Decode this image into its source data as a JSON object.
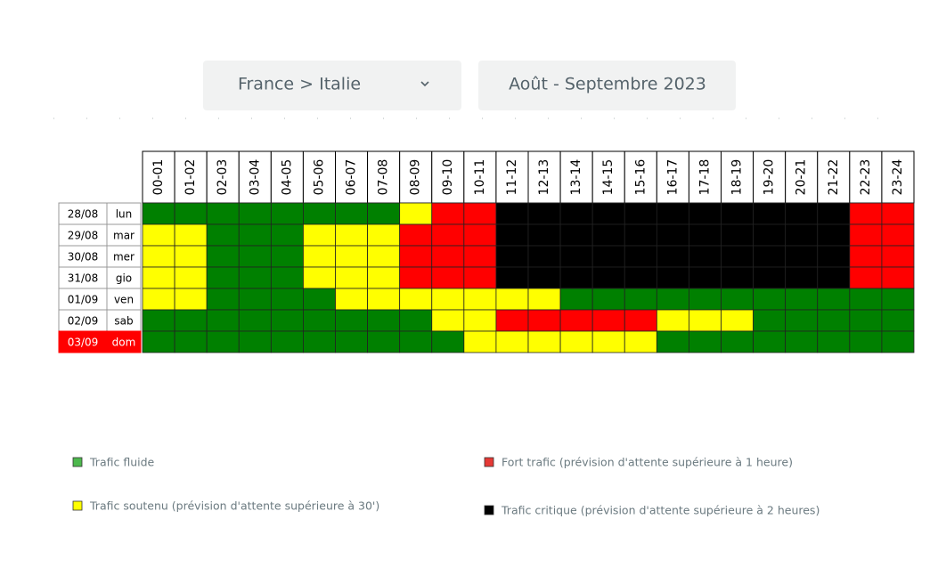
{
  "filters": {
    "route": "France > Italie",
    "period": "Août - Septembre 2023"
  },
  "table": {
    "hours": [
      "00-01",
      "01-02",
      "02-03",
      "03-04",
      "04-05",
      "05-06",
      "06-07",
      "07-08",
      "08-09",
      "09-10",
      "10-11",
      "11-12",
      "12-13",
      "13-14",
      "14-15",
      "15-16",
      "16-17",
      "17-18",
      "18-19",
      "19-20",
      "20-21",
      "21-22",
      "22-23",
      "23-24"
    ],
    "rows": [
      {
        "date": "28/08",
        "day": "lun",
        "cells": [
          "#008000",
          "#008000",
          "#008000",
          "#008000",
          "#008000",
          "#008000",
          "#008000",
          "#008000",
          "#ffff00",
          "#ff0000",
          "#ff0000",
          "#000000",
          "#000000",
          "#000000",
          "#000000",
          "#000000",
          "#000000",
          "#000000",
          "#000000",
          "#000000",
          "#000000",
          "#000000",
          "#ff0000",
          "#ff0000"
        ]
      },
      {
        "date": "29/08",
        "day": "mar",
        "cells": [
          "#ffff00",
          "#ffff00",
          "#008000",
          "#008000",
          "#008000",
          "#ffff00",
          "#ffff00",
          "#ffff00",
          "#ff0000",
          "#ff0000",
          "#ff0000",
          "#000000",
          "#000000",
          "#000000",
          "#000000",
          "#000000",
          "#000000",
          "#000000",
          "#000000",
          "#000000",
          "#000000",
          "#000000",
          "#ff0000",
          "#ff0000"
        ]
      },
      {
        "date": "30/08",
        "day": "mer",
        "cells": [
          "#ffff00",
          "#ffff00",
          "#008000",
          "#008000",
          "#008000",
          "#ffff00",
          "#ffff00",
          "#ffff00",
          "#ff0000",
          "#ff0000",
          "#ff0000",
          "#000000",
          "#000000",
          "#000000",
          "#000000",
          "#000000",
          "#000000",
          "#000000",
          "#000000",
          "#000000",
          "#000000",
          "#000000",
          "#ff0000",
          "#ff0000"
        ]
      },
      {
        "date": "31/08",
        "day": "gio",
        "cells": [
          "#ffff00",
          "#ffff00",
          "#008000",
          "#008000",
          "#008000",
          "#ffff00",
          "#ffff00",
          "#ffff00",
          "#ff0000",
          "#ff0000",
          "#ff0000",
          "#000000",
          "#000000",
          "#000000",
          "#000000",
          "#000000",
          "#000000",
          "#000000",
          "#000000",
          "#000000",
          "#000000",
          "#000000",
          "#ff0000",
          "#ff0000"
        ]
      },
      {
        "date": "01/09",
        "day": "ven",
        "cells": [
          "#ffff00",
          "#ffff00",
          "#008000",
          "#008000",
          "#008000",
          "#008000",
          "#ffff00",
          "#ffff00",
          "#ffff00",
          "#ffff00",
          "#ffff00",
          "#ffff00",
          "#ffff00",
          "#008000",
          "#008000",
          "#008000",
          "#008000",
          "#008000",
          "#008000",
          "#008000",
          "#008000",
          "#008000",
          "#008000",
          "#008000"
        ]
      },
      {
        "date": "02/09",
        "day": "sab",
        "cells": [
          "#008000",
          "#008000",
          "#008000",
          "#008000",
          "#008000",
          "#008000",
          "#008000",
          "#008000",
          "#008000",
          "#ffff00",
          "#ffff00",
          "#ff0000",
          "#ff0000",
          "#ff0000",
          "#ff0000",
          "#ff0000",
          "#ffff00",
          "#ffff00",
          "#ffff00",
          "#008000",
          "#008000",
          "#008000",
          "#008000",
          "#008000"
        ]
      },
      {
        "date": "03/09",
        "day": "dom",
        "label_color": "#ff0000",
        "cells": [
          "#008000",
          "#008000",
          "#008000",
          "#008000",
          "#008000",
          "#008000",
          "#008000",
          "#008000",
          "#008000",
          "#008000",
          "#ffff00",
          "#ffff00",
          "#ffff00",
          "#ffff00",
          "#ffff00",
          "#ffff00",
          "#008000",
          "#008000",
          "#008000",
          "#008000",
          "#008000",
          "#008000",
          "#008000",
          "#008000"
        ]
      }
    ]
  },
  "legend": [
    {
      "label": "Trafic fluide",
      "color": "#4db84d"
    },
    {
      "label": "Fort trafic (prévision d'attente supérieure à 1 heure)",
      "color": "#e53935"
    },
    {
      "label": "Trafic soutenu (prévision d'attente supérieure à 30')",
      "color": "#ffff00"
    },
    {
      "label": "Trafic critique (prévision d'attente supérieure à 2 heures)",
      "color": "#000000"
    }
  ]
}
